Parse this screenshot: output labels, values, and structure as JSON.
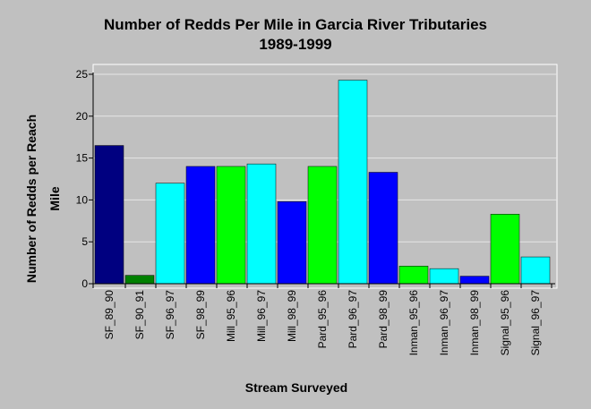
{
  "chart_data": {
    "type": "bar",
    "title": "Number of Redds Per Mile in Garcia River Tributaries",
    "subtitle": "1989-1999",
    "xlabel": "Stream Surveyed",
    "ylabel_lines": [
      "Number of Redds per Reach",
      "Mile"
    ],
    "ylim": [
      0,
      25
    ],
    "yticks": [
      0,
      5,
      10,
      15,
      20,
      25
    ],
    "grid": true,
    "legend": "none",
    "categories": [
      "SF_89_90",
      "SF_90_91",
      "SF_96_97",
      "SF_98_99",
      "Mill_95_96",
      "Mill_96_97",
      "Mill_98_99",
      "Pard_95_96",
      "Pard_96_97",
      "Pard_98_99",
      "Inman_95_96",
      "Inman_96_97",
      "Inman_98_99",
      "Signal_95_96",
      "Signal_96_97"
    ],
    "values": [
      16.5,
      1.0,
      12.0,
      14.0,
      14.0,
      14.3,
      9.8,
      14.0,
      24.3,
      13.3,
      2.1,
      1.8,
      0.9,
      8.3,
      3.2
    ],
    "colors": [
      "#000080",
      "#008000",
      "#00ffff",
      "#0000ff",
      "#00ff00",
      "#00ffff",
      "#0000ff",
      "#00ff00",
      "#00ffff",
      "#0000ff",
      "#00ff00",
      "#00ffff",
      "#0000ff",
      "#00ff00",
      "#00ffff"
    ]
  }
}
